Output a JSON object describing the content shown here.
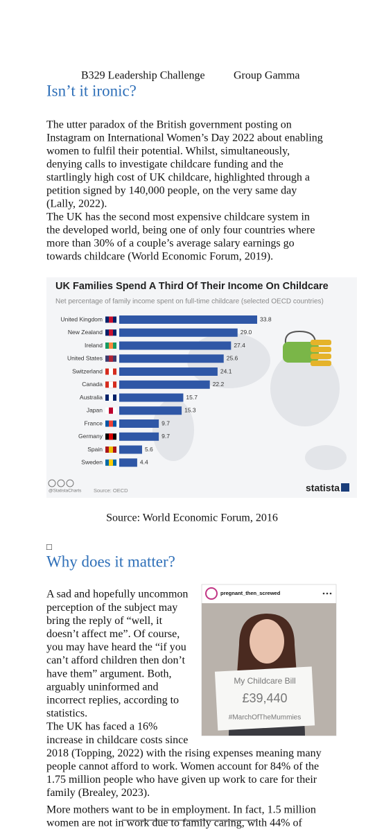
{
  "header": {
    "course": "B329 Leadership Challenge",
    "group": "Group Gamma"
  },
  "section1": {
    "heading": "Isn’t it ironic?",
    "lines": [
      "The utter paradox of the British government posting on",
      "Instagram on International Women’s Day 2022 about enabling",
      "women to fulfil their potential.  Whilst, simultaneously,",
      "denying calls to investigate childcare funding and the",
      "startlingly high cost of UK childcare, highlighted through a",
      "petition signed by 140,000 people, on the very same day",
      "(Lally, 2022).",
      "The UK has the second most expensive childcare system in",
      "the developed world, being one of only four countries where",
      "more than 30% of a couple’s average salary earnings go",
      "towards childcare (World Economic Forum, 2019)."
    ]
  },
  "chart": {
    "type": "bar",
    "title": "UK Families Spend A Third Of Their Income On Childcare",
    "subtitle": "Net percentage of family income spent on full-time childcare (selected OECD countries)",
    "categories": [
      "United Kingdom",
      "New Zealand",
      "Ireland",
      "United States",
      "Switzerland",
      "Canada",
      "Australia",
      "Japan",
      "France",
      "Germany",
      "Spain",
      "Sweden"
    ],
    "values": [
      33.8,
      29.0,
      27.4,
      25.6,
      24.1,
      22.2,
      15.7,
      15.3,
      9.7,
      9.7,
      5.6,
      4.4
    ],
    "value_labels": [
      "33.8",
      "29.0",
      "27.4",
      "25.6",
      "24.1",
      "22.2",
      "15.7",
      "15.3",
      "9.7",
      "9.7",
      "5.6",
      "4.4"
    ],
    "color": "#2f57a6",
    "credit": "@StatistaCharts",
    "source": "Source: OECD",
    "brand": "statista"
  },
  "caption": "Source:  World Economic Forum, 2016",
  "section2": {
    "marker": "□",
    "heading": "Why does it matter?",
    "lines": [
      "A sad and hopefully uncommon",
      "perception of the subject may",
      "bring the reply of “well, it",
      "doesn’t affect me”. Of course,",
      "you may have heard the “if you",
      "can’t afford children then don’t",
      "have them” argument. Both,",
      "arguably uninformed and",
      "incorrect replies, according to",
      "statistics.",
      "The UK has faced a 16%",
      "increase in childcare costs since",
      "2018 (Topping, 2022) with the rising expenses meaning many",
      "people cannot afford to work. Women account for 84% of the",
      "1.75 million people who have given up work to care for their",
      "family (Brealey, 2023).",
      "More mothers want to be in employment. In fact, 1.5 million",
      "women are not in work due to family caring, with 44% of"
    ],
    "post": {
      "handle": "pregnant_then_screwed",
      "sign_line1": "My Childcare Bill",
      "sign_line2": "£39,440",
      "sign_line3": "#MarchOfTheMummies"
    }
  }
}
